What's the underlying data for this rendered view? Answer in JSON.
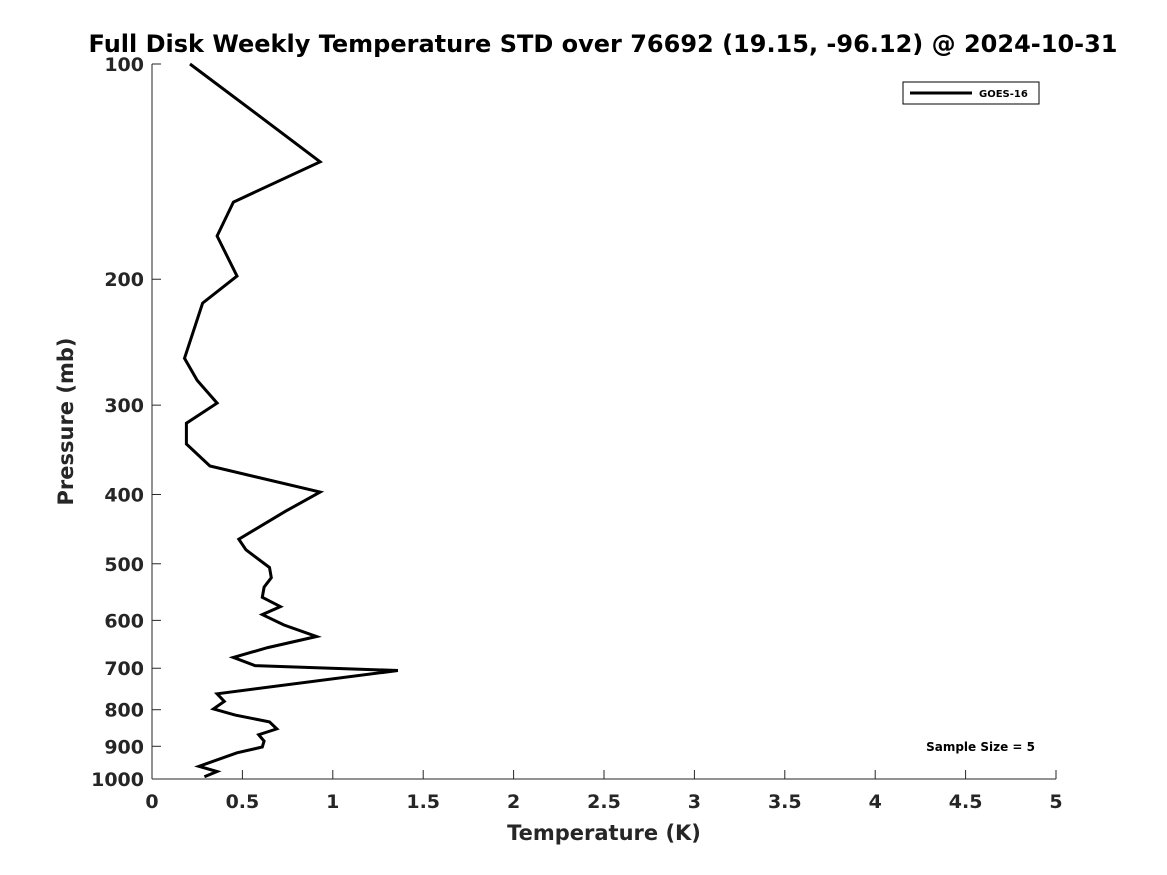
{
  "chart_data": {
    "type": "line",
    "title": "Full Disk Weekly Temperature STD over 76692 (19.15, -96.12) @ 2024-10-31",
    "xlabel": "Temperature (K)",
    "ylabel": "Pressure (mb)",
    "xlim": [
      0,
      5
    ],
    "ylim": [
      100,
      1000
    ],
    "y_scale": "log",
    "y_reversed": true,
    "x_ticks": [
      "0",
      "0.5",
      "1",
      "1.5",
      "2",
      "2.5",
      "3",
      "3.5",
      "4",
      "4.5",
      "5"
    ],
    "y_ticks": [
      "100",
      "200",
      "300",
      "400",
      "500",
      "600",
      "700",
      "800",
      "900",
      "1000"
    ],
    "grid": false,
    "legend_position": "top-right",
    "annotation": "Sample Size = 5",
    "series": [
      {
        "name": "GOES-16",
        "color": "#000000",
        "points": [
          [
            0.21,
            100
          ],
          [
            0.57,
            117
          ],
          [
            0.93,
            137
          ],
          [
            0.45,
            156
          ],
          [
            0.36,
            174
          ],
          [
            0.47,
            198
          ],
          [
            0.28,
            216
          ],
          [
            0.18,
            258
          ],
          [
            0.25,
            277
          ],
          [
            0.36,
            298
          ],
          [
            0.19,
            318
          ],
          [
            0.19,
            340
          ],
          [
            0.32,
            365
          ],
          [
            0.93,
            397
          ],
          [
            0.74,
            422
          ],
          [
            0.48,
            462
          ],
          [
            0.52,
            478
          ],
          [
            0.65,
            506
          ],
          [
            0.66,
            523
          ],
          [
            0.62,
            539
          ],
          [
            0.61,
            557
          ],
          [
            0.71,
            574
          ],
          [
            0.61,
            589
          ],
          [
            0.73,
            609
          ],
          [
            0.91,
            632
          ],
          [
            0.64,
            655
          ],
          [
            0.45,
            676
          ],
          [
            0.57,
            694
          ],
          [
            1.36,
            705
          ],
          [
            0.36,
            760
          ],
          [
            0.4,
            779
          ],
          [
            0.34,
            798
          ],
          [
            0.46,
            814
          ],
          [
            0.65,
            832
          ],
          [
            0.69,
            851
          ],
          [
            0.59,
            867
          ],
          [
            0.62,
            885
          ],
          [
            0.61,
            902
          ],
          [
            0.47,
            919
          ],
          [
            0.26,
            960
          ],
          [
            0.36,
            976
          ],
          [
            0.29,
            993
          ]
        ]
      }
    ]
  }
}
